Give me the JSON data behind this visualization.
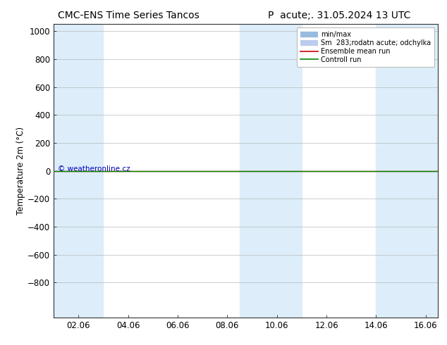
{
  "title_left": "CMC-ENS Time Series Tancos",
  "title_right": "P  acute;. 31.05.2024 13 UTC",
  "ylabel": "Temperature 2m (°C)",
  "ylim_top": -1050,
  "ylim_bottom": 1050,
  "yticks": [
    -800,
    -600,
    -400,
    -200,
    0,
    200,
    400,
    600,
    800,
    1000
  ],
  "x_tick_labels": [
    "02.06",
    "04.06",
    "06.06",
    "08.06",
    "10.06",
    "12.06",
    "14.06",
    "16.06"
  ],
  "x_tick_positions": [
    1.0,
    3.0,
    5.0,
    7.0,
    9.0,
    11.0,
    13.0,
    15.0
  ],
  "xlim": [
    0,
    15.5
  ],
  "shaded_bands": [
    [
      0.0,
      0.5
    ],
    [
      0.5,
      2.0
    ],
    [
      7.0,
      8.0
    ],
    [
      8.0,
      10.0
    ],
    [
      13.0,
      13.5
    ],
    [
      15.0,
      15.5
    ]
  ],
  "shade_color_dark": "#c5daf0",
  "shade_color_light": "#ddeefa",
  "ensemble_mean_y": 0,
  "control_run_y": 0,
  "line_color_ensemble": "#cc0000",
  "line_color_control": "#008800",
  "legend_minmax_color": "#99bbdd",
  "legend_sm_color": "#bbccee",
  "watermark": "© weatheronline.cz",
  "watermark_color": "#0000bb",
  "background_color": "#ffffff",
  "title_fontsize": 10,
  "axis_fontsize": 8.5
}
